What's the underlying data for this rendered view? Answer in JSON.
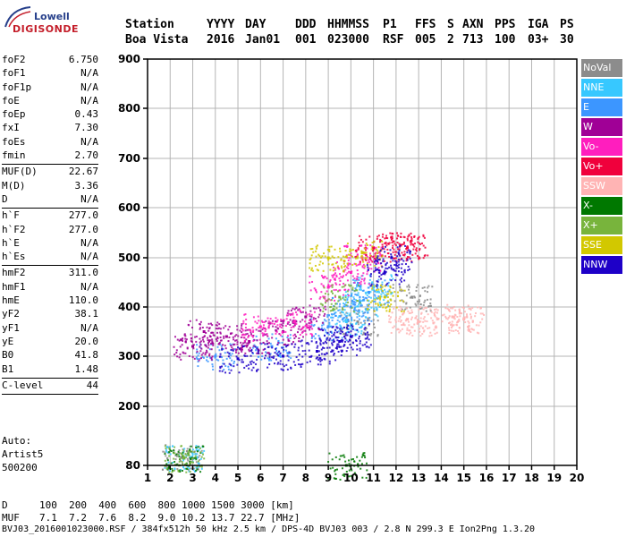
{
  "logo": {
    "line1": "Lowell",
    "line2": "DIGISONDE"
  },
  "header": {
    "labels": [
      "Station",
      "YYYY",
      "DAY",
      "DDD",
      "HHMMSS",
      "P1",
      "FFS",
      "S",
      "AXN",
      "PPS",
      "IGA",
      "PS"
    ],
    "values": [
      "Boa Vista",
      "2016",
      "Jan01",
      "001",
      "023000",
      "RSF",
      "005",
      "2",
      "713",
      "100",
      "03+",
      "30"
    ]
  },
  "params": [
    {
      "name": "foF2",
      "value": "6.750"
    },
    {
      "name": "foF1",
      "value": "N/A"
    },
    {
      "name": "foF1p",
      "value": "N/A"
    },
    {
      "name": "foE",
      "value": "N/A"
    },
    {
      "name": "foEp",
      "value": "0.43"
    },
    {
      "name": "fxI",
      "value": "7.30"
    },
    {
      "name": "foEs",
      "value": "N/A"
    },
    {
      "name": "fmin",
      "value": "2.70"
    },
    {
      "name": "sep",
      "value": ""
    },
    {
      "name": "MUF(D)",
      "value": "22.67"
    },
    {
      "name": "M(D)",
      "value": "3.36"
    },
    {
      "name": "D",
      "value": "N/A"
    },
    {
      "name": "sep",
      "value": ""
    },
    {
      "name": "h`F",
      "value": "277.0"
    },
    {
      "name": "h`F2",
      "value": "277.0"
    },
    {
      "name": "h`E",
      "value": "N/A"
    },
    {
      "name": "h`Es",
      "value": "N/A"
    },
    {
      "name": "sep",
      "value": ""
    },
    {
      "name": "hmF2",
      "value": "311.0"
    },
    {
      "name": "hmF1",
      "value": "N/A"
    },
    {
      "name": "hmE",
      "value": "110.0"
    },
    {
      "name": "yF2",
      "value": "38.1"
    },
    {
      "name": "yF1",
      "value": "N/A"
    },
    {
      "name": "yE",
      "value": "20.0"
    },
    {
      "name": "B0",
      "value": "41.8"
    },
    {
      "name": "B1",
      "value": "1.48"
    },
    {
      "name": "sep",
      "value": ""
    },
    {
      "name": "C-level",
      "value": "44"
    },
    {
      "name": "sep",
      "value": ""
    }
  ],
  "auto": {
    "line1": "Auto:",
    "line2": "Artist5",
    "line3": "500200"
  },
  "legend": [
    {
      "label": "NoVal",
      "color": "#8c8c8c"
    },
    {
      "label": "NNE",
      "color": "#37c8ff"
    },
    {
      "label": "E",
      "color": "#3c96ff"
    },
    {
      "label": "W",
      "color": "#a00096"
    },
    {
      "label": "Vo-",
      "color": "#ff1ebe"
    },
    {
      "label": "Vo+",
      "color": "#f0003c"
    },
    {
      "label": "SSW",
      "color": "#ffb4b4"
    },
    {
      "label": "X-",
      "color": "#007800"
    },
    {
      "label": "X+",
      "color": "#78b43c"
    },
    {
      "label": "SSE",
      "color": "#d2c800"
    },
    {
      "label": "NNW",
      "color": "#1e00c8"
    }
  ],
  "bottom": {
    "d_label": "D",
    "d_values": "100  200  400  600  800 1000 1500 3000 [km]",
    "muf_label": "MUF",
    "muf_values": "7.1  7.2  7.6  8.2  9.0 10.2 13.7 22.7 [MHz]",
    "footer": "BVJ03_2016001023000.RSF / 384fx512h 50 kHz 2.5 km / DPS-4D BVJ03 003 / 2.8 N 299.3 E Ion2Png 1.3.20"
  },
  "chart_data": {
    "type": "scatter",
    "xlabel": "",
    "ylabel": "",
    "xlim": [
      1,
      20
    ],
    "ylim": [
      80,
      900
    ],
    "x_ticks": [
      1,
      2,
      3,
      4,
      5,
      6,
      7,
      8,
      9,
      10,
      11,
      12,
      13,
      14,
      15,
      16,
      17,
      18,
      19,
      20
    ],
    "y_ticks": [
      80,
      200,
      300,
      400,
      500,
      600,
      700,
      800,
      900
    ],
    "grid": true,
    "legend_position": "right",
    "series": [
      {
        "name": "NoVal",
        "x": [
          2.5,
          10.3,
          12.7
        ],
        "y": [
          96,
          370,
          420
        ]
      },
      {
        "name": "NNE",
        "x": [
          2.6,
          9.8,
          10.4,
          11.0
        ],
        "y": [
          95,
          370,
          410,
          440
        ]
      },
      {
        "name": "E",
        "x": [
          4.0,
          6.5,
          9.0,
          10.0,
          10.8
        ],
        "y": [
          300,
          320,
          360,
          400,
          430
        ]
      },
      {
        "name": "W",
        "x": [
          3.0,
          3.5,
          4.5,
          5.5,
          7.0,
          8.0
        ],
        "y": [
          320,
          350,
          340,
          330,
          350,
          380
        ]
      },
      {
        "name": "Vo-",
        "x": [
          6.0,
          7.5,
          9.0,
          10.0,
          10.5
        ],
        "y": [
          360,
          370,
          440,
          470,
          500
        ]
      },
      {
        "name": "Vo+",
        "x": [
          11.0,
          12.2,
          12.5
        ],
        "y": [
          520,
          525,
          520
        ]
      },
      {
        "name": "SSW",
        "x": [
          12.5,
          13.0,
          14.5,
          15.0
        ],
        "y": [
          375,
          370,
          380,
          375
        ]
      },
      {
        "name": "X-",
        "x": [
          2.6,
          9.8
        ],
        "y": [
          95,
          80
        ]
      },
      {
        "name": "X+",
        "x": [
          2.6,
          9.5
        ],
        "y": [
          95,
          420
        ]
      },
      {
        "name": "SSE",
        "x": [
          9.0,
          10.5,
          11.5
        ],
        "y": [
          500,
          510,
          420
        ]
      },
      {
        "name": "NNW",
        "x": [
          5.0,
          7.0,
          8.5,
          9.5,
          10.0,
          11.5,
          11.8
        ],
        "y": [
          295,
          300,
          310,
          330,
          340,
          470,
          500
        ]
      }
    ]
  }
}
